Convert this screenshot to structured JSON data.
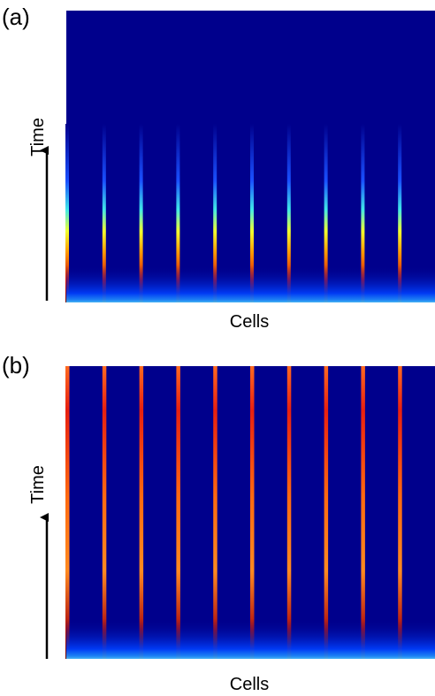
{
  "panels": [
    {
      "label": "(a)",
      "y_label": "Time",
      "x_label": "Cells"
    },
    {
      "label": "(b)",
      "y_label": "Time",
      "x_label": "Cells"
    }
  ]
}
